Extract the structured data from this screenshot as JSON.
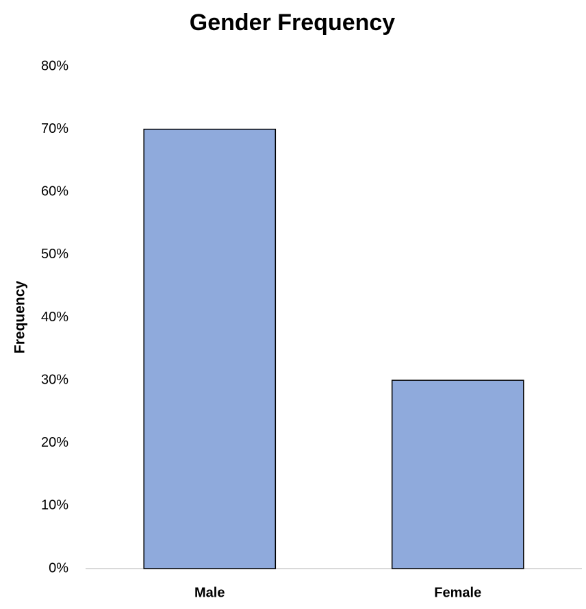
{
  "chart_data": {
    "type": "bar",
    "title": "Gender Frequency",
    "y_label": "Frequency",
    "categories": [
      "Male",
      "Female"
    ],
    "values": [
      70,
      30
    ],
    "color": "#8faadc",
    "ylim": [
      0,
      80
    ],
    "yticks": [
      {
        "value": 0,
        "label": "0%"
      },
      {
        "value": 10,
        "label": "10%"
      },
      {
        "value": 20,
        "label": "20%"
      },
      {
        "value": 30,
        "label": "30%"
      },
      {
        "value": 40,
        "label": "40%"
      },
      {
        "value": 50,
        "label": "50%"
      },
      {
        "value": 60,
        "label": "60%"
      },
      {
        "value": 70,
        "label": "70%"
      },
      {
        "value": 80,
        "label": "80%"
      }
    ],
    "grid": false
  }
}
